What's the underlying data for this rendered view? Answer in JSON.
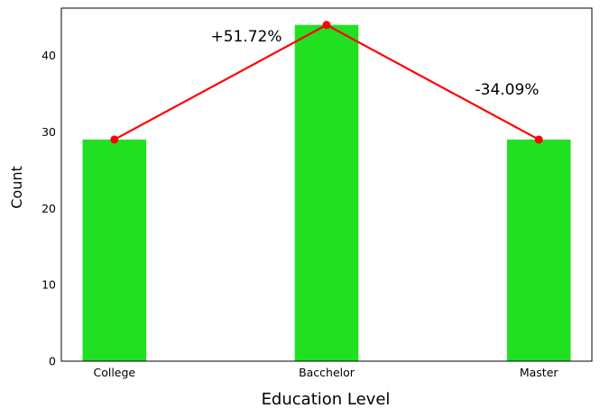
{
  "chart_data": {
    "type": "bar",
    "categories": [
      "College",
      "Bacchelor",
      "Master"
    ],
    "values": [
      29,
      44,
      29
    ],
    "xlabel": "Education Level",
    "ylabel": "Count",
    "ylim": [
      0,
      46.2
    ],
    "yticks": [
      0,
      10,
      20,
      30,
      40
    ],
    "grid": false,
    "legend": "none",
    "bar_color": "#21e021",
    "line_color": "#ff0000",
    "overlay_line": {
      "values": [
        29,
        44,
        29
      ],
      "markers": true
    },
    "annotations": [
      "+51.72%",
      "-34.09%"
    ]
  }
}
